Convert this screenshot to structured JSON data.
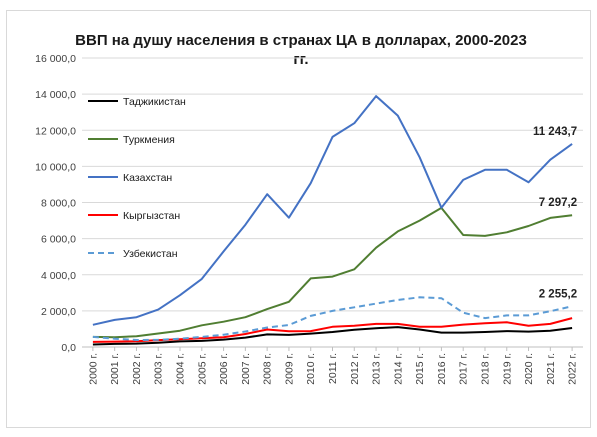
{
  "chart_data": {
    "type": "line",
    "title_line1": "ВВП на душу населения в странах ЦА в долларах, 2000-2023",
    "title_line2": "гг.",
    "x": [
      "2000 г.",
      "2001 г.",
      "2002 г.",
      "2003 г.",
      "2004 г.",
      "2005 г.",
      "2006 г.",
      "2007 г.",
      "2008 г.",
      "2009 г.",
      "2010 г.",
      "2011 г.",
      "2012 г.",
      "2013 г.",
      "2014 г.",
      "2015 г.",
      "2016 г.",
      "2017 г.",
      "2018 г.",
      "2019 г.",
      "2020 г.",
      "2021 г.",
      "2022 г."
    ],
    "ylim": [
      0,
      16000
    ],
    "yticks": [
      0,
      2000,
      4000,
      6000,
      8000,
      10000,
      12000,
      14000,
      16000
    ],
    "ytick_labels": [
      "0,0",
      "2 000,0",
      "4 000,0",
      "6 000,0",
      "8 000,0",
      "10 000,0",
      "12 000,0",
      "14 000,0",
      "16 000,0"
    ],
    "grid": true,
    "legend_position": "left",
    "series": [
      {
        "name": "Таджикистан",
        "color": "#000000",
        "dashed": false,
        "values": [
          140,
          170,
          190,
          240,
          310,
          340,
          410,
          520,
          700,
          670,
          740,
          830,
          960,
          1040,
          1100,
          970,
          800,
          800,
          830,
          880,
          850,
          900,
          1050
        ]
      },
      {
        "name": "Туркмения",
        "color": "#507e32",
        "dashed": false,
        "values": [
          560,
          540,
          600,
          750,
          900,
          1200,
          1400,
          1650,
          2100,
          2500,
          3800,
          3900,
          4300,
          5500,
          6400,
          7000,
          7700,
          6200,
          6150,
          6350,
          6700,
          7150,
          7297.2
        ]
      },
      {
        "name": "Казахстан",
        "color": "#4472c4",
        "dashed": false,
        "values": [
          1230,
          1500,
          1650,
          2070,
          2870,
          3770,
          5290,
          6770,
          8460,
          7160,
          9070,
          11630,
          12390,
          13890,
          12810,
          10510,
          7710,
          9250,
          9810,
          9810,
          9120,
          10370,
          11243.7
        ]
      },
      {
        "name": "Кыргызстан",
        "color": "#ff0000",
        "dashed": false,
        "values": [
          280,
          300,
          320,
          380,
          430,
          480,
          540,
          720,
          970,
          870,
          880,
          1120,
          1180,
          1280,
          1280,
          1120,
          1120,
          1240,
          1310,
          1370,
          1180,
          1280,
          1600
        ]
      },
      {
        "name": "Узбекистан",
        "color": "#5b9bd5",
        "dashed": true,
        "values": [
          560,
          460,
          390,
          400,
          460,
          560,
          680,
          860,
          1080,
          1220,
          1720,
          2000,
          2200,
          2400,
          2600,
          2750,
          2700,
          1900,
          1600,
          1750,
          1750,
          1980,
          2255.2
        ]
      }
    ],
    "annotations": [
      {
        "text": "11 243,7",
        "series": 2
      },
      {
        "text": "7 297,2",
        "series": 1
      },
      {
        "text": "2 255,2",
        "series": 4
      }
    ]
  }
}
